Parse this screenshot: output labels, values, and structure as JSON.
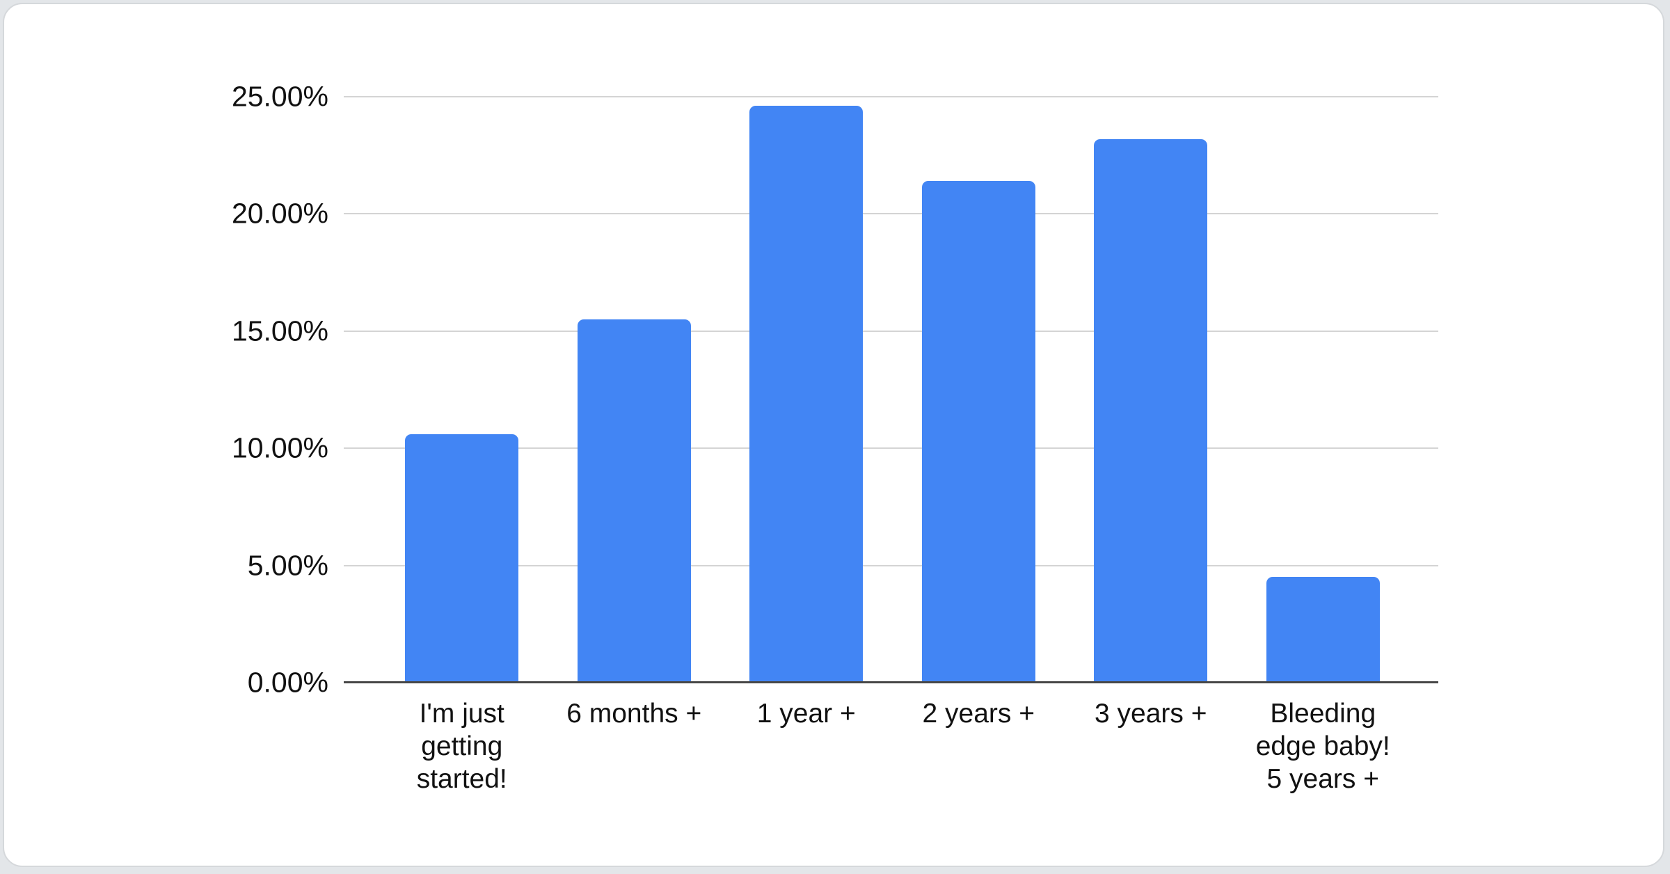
{
  "page": {
    "background_color": "#e3e6e9",
    "card_background": "#ffffff",
    "card_border_color": "#d5d8db"
  },
  "chart_data": {
    "type": "bar",
    "title": "",
    "xlabel": "",
    "ylabel": "",
    "categories": [
      "I'm just getting started!",
      "6 months +",
      "1 year +",
      "2 years +",
      "3 years +",
      "Bleeding edge baby! 5 years +"
    ],
    "category_lines": [
      [
        "I'm just",
        "getting",
        "started!"
      ],
      [
        "6 months +"
      ],
      [
        "1 year +"
      ],
      [
        "2 years +"
      ],
      [
        "3 years +"
      ],
      [
        "Bleeding",
        "edge baby!",
        "5 years +"
      ]
    ],
    "values": [
      10.6,
      15.5,
      24.6,
      21.4,
      23.2,
      4.5
    ],
    "unit": "%",
    "ylim": [
      0,
      25
    ],
    "yticks": [
      0,
      5,
      10,
      15,
      20,
      25
    ],
    "ytick_labels": [
      "0.00%",
      "5.00%",
      "10.00%",
      "15.00%",
      "20.00%",
      "25.00%"
    ],
    "grid": true,
    "legend": "none",
    "bar_color": "#4285f4",
    "gridline_color": "#d4d4d4",
    "baseline_color": "#474747",
    "label_color": "#111111"
  }
}
